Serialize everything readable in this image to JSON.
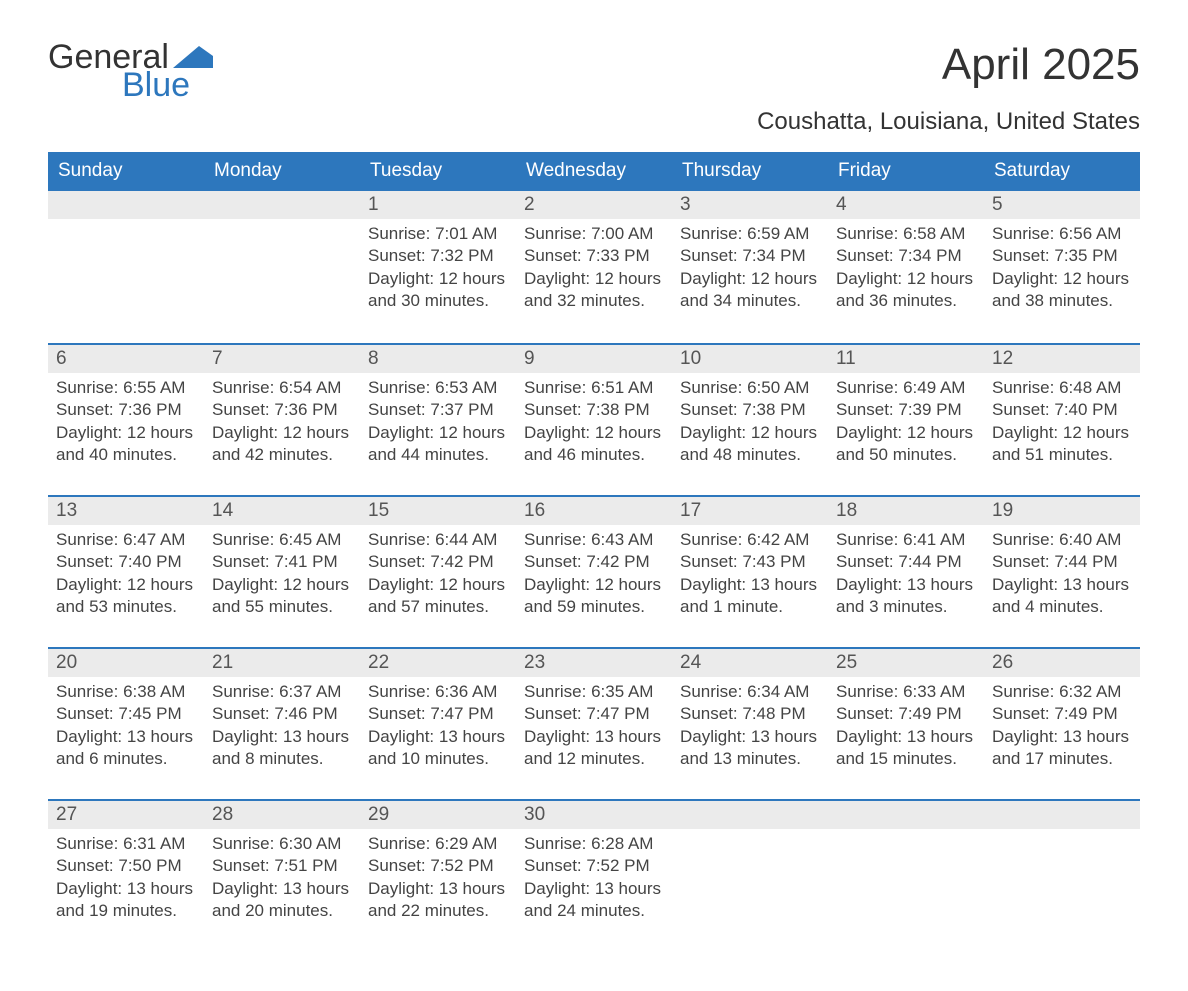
{
  "logo": {
    "word1": "General",
    "word2": "Blue",
    "accent_color": "#2d77bd",
    "text_color": "#333333"
  },
  "title": "April 2025",
  "subtitle": "Coushatta, Louisiana, United States",
  "colors": {
    "header_bg": "#2d77bd",
    "header_text": "#ffffff",
    "daynum_bg": "#ebebeb",
    "body_text": "#444444",
    "page_bg": "#ffffff",
    "week_border": "#2d77bd"
  },
  "fontsizes": {
    "title": 44,
    "subtitle": 24,
    "header": 19,
    "daynum": 19,
    "body": 17,
    "logo": 34
  },
  "day_labels": [
    "Sunday",
    "Monday",
    "Tuesday",
    "Wednesday",
    "Thursday",
    "Friday",
    "Saturday"
  ],
  "labels": {
    "sunrise": "Sunrise:",
    "sunset": "Sunset:",
    "daylight": "Daylight:"
  },
  "weeks": [
    [
      {
        "n": "",
        "rise": "",
        "set": "",
        "dl1": "",
        "dl2": ""
      },
      {
        "n": "",
        "rise": "",
        "set": "",
        "dl1": "",
        "dl2": ""
      },
      {
        "n": "1",
        "rise": "7:01 AM",
        "set": "7:32 PM",
        "dl1": "12 hours",
        "dl2": "and 30 minutes."
      },
      {
        "n": "2",
        "rise": "7:00 AM",
        "set": "7:33 PM",
        "dl1": "12 hours",
        "dl2": "and 32 minutes."
      },
      {
        "n": "3",
        "rise": "6:59 AM",
        "set": "7:34 PM",
        "dl1": "12 hours",
        "dl2": "and 34 minutes."
      },
      {
        "n": "4",
        "rise": "6:58 AM",
        "set": "7:34 PM",
        "dl1": "12 hours",
        "dl2": "and 36 minutes."
      },
      {
        "n": "5",
        "rise": "6:56 AM",
        "set": "7:35 PM",
        "dl1": "12 hours",
        "dl2": "and 38 minutes."
      }
    ],
    [
      {
        "n": "6",
        "rise": "6:55 AM",
        "set": "7:36 PM",
        "dl1": "12 hours",
        "dl2": "and 40 minutes."
      },
      {
        "n": "7",
        "rise": "6:54 AM",
        "set": "7:36 PM",
        "dl1": "12 hours",
        "dl2": "and 42 minutes."
      },
      {
        "n": "8",
        "rise": "6:53 AM",
        "set": "7:37 PM",
        "dl1": "12 hours",
        "dl2": "and 44 minutes."
      },
      {
        "n": "9",
        "rise": "6:51 AM",
        "set": "7:38 PM",
        "dl1": "12 hours",
        "dl2": "and 46 minutes."
      },
      {
        "n": "10",
        "rise": "6:50 AM",
        "set": "7:38 PM",
        "dl1": "12 hours",
        "dl2": "and 48 minutes."
      },
      {
        "n": "11",
        "rise": "6:49 AM",
        "set": "7:39 PM",
        "dl1": "12 hours",
        "dl2": "and 50 minutes."
      },
      {
        "n": "12",
        "rise": "6:48 AM",
        "set": "7:40 PM",
        "dl1": "12 hours",
        "dl2": "and 51 minutes."
      }
    ],
    [
      {
        "n": "13",
        "rise": "6:47 AM",
        "set": "7:40 PM",
        "dl1": "12 hours",
        "dl2": "and 53 minutes."
      },
      {
        "n": "14",
        "rise": "6:45 AM",
        "set": "7:41 PM",
        "dl1": "12 hours",
        "dl2": "and 55 minutes."
      },
      {
        "n": "15",
        "rise": "6:44 AM",
        "set": "7:42 PM",
        "dl1": "12 hours",
        "dl2": "and 57 minutes."
      },
      {
        "n": "16",
        "rise": "6:43 AM",
        "set": "7:42 PM",
        "dl1": "12 hours",
        "dl2": "and 59 minutes."
      },
      {
        "n": "17",
        "rise": "6:42 AM",
        "set": "7:43 PM",
        "dl1": "13 hours",
        "dl2": "and 1 minute."
      },
      {
        "n": "18",
        "rise": "6:41 AM",
        "set": "7:44 PM",
        "dl1": "13 hours",
        "dl2": "and 3 minutes."
      },
      {
        "n": "19",
        "rise": "6:40 AM",
        "set": "7:44 PM",
        "dl1": "13 hours",
        "dl2": "and 4 minutes."
      }
    ],
    [
      {
        "n": "20",
        "rise": "6:38 AM",
        "set": "7:45 PM",
        "dl1": "13 hours",
        "dl2": "and 6 minutes."
      },
      {
        "n": "21",
        "rise": "6:37 AM",
        "set": "7:46 PM",
        "dl1": "13 hours",
        "dl2": "and 8 minutes."
      },
      {
        "n": "22",
        "rise": "6:36 AM",
        "set": "7:47 PM",
        "dl1": "13 hours",
        "dl2": "and 10 minutes."
      },
      {
        "n": "23",
        "rise": "6:35 AM",
        "set": "7:47 PM",
        "dl1": "13 hours",
        "dl2": "and 12 minutes."
      },
      {
        "n": "24",
        "rise": "6:34 AM",
        "set": "7:48 PM",
        "dl1": "13 hours",
        "dl2": "and 13 minutes."
      },
      {
        "n": "25",
        "rise": "6:33 AM",
        "set": "7:49 PM",
        "dl1": "13 hours",
        "dl2": "and 15 minutes."
      },
      {
        "n": "26",
        "rise": "6:32 AM",
        "set": "7:49 PM",
        "dl1": "13 hours",
        "dl2": "and 17 minutes."
      }
    ],
    [
      {
        "n": "27",
        "rise": "6:31 AM",
        "set": "7:50 PM",
        "dl1": "13 hours",
        "dl2": "and 19 minutes."
      },
      {
        "n": "28",
        "rise": "6:30 AM",
        "set": "7:51 PM",
        "dl1": "13 hours",
        "dl2": "and 20 minutes."
      },
      {
        "n": "29",
        "rise": "6:29 AM",
        "set": "7:52 PM",
        "dl1": "13 hours",
        "dl2": "and 22 minutes."
      },
      {
        "n": "30",
        "rise": "6:28 AM",
        "set": "7:52 PM",
        "dl1": "13 hours",
        "dl2": "and 24 minutes."
      },
      {
        "n": "",
        "rise": "",
        "set": "",
        "dl1": "",
        "dl2": ""
      },
      {
        "n": "",
        "rise": "",
        "set": "",
        "dl1": "",
        "dl2": ""
      },
      {
        "n": "",
        "rise": "",
        "set": "",
        "dl1": "",
        "dl2": ""
      }
    ]
  ]
}
